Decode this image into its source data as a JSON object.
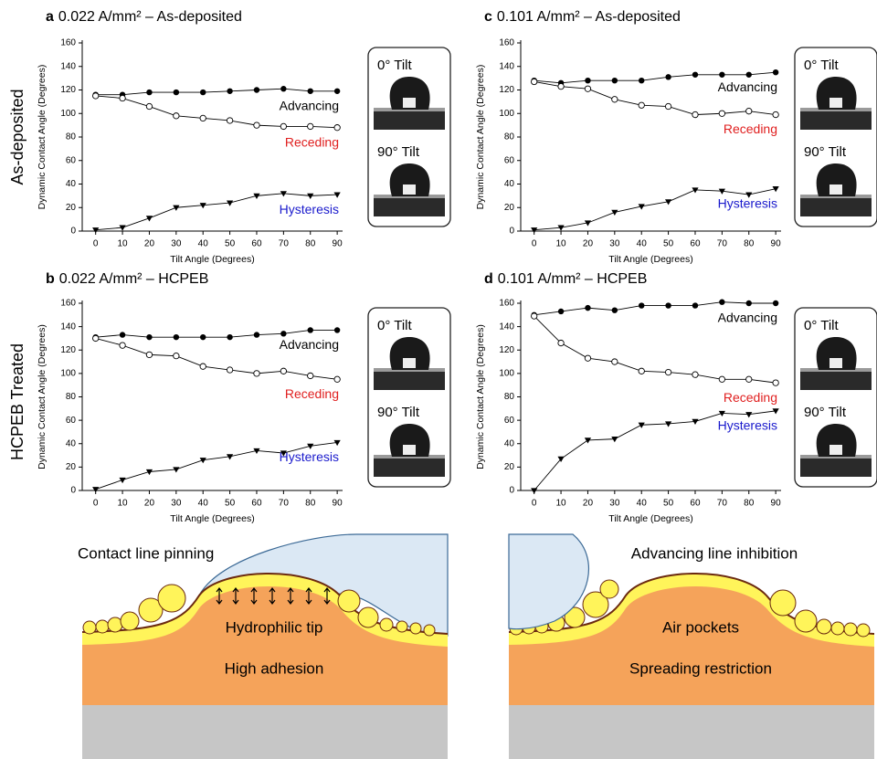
{
  "row_labels": [
    "As-deposited",
    "HCPEB Treated"
  ],
  "chart_data": [
    {
      "type": "line",
      "panel_label": "a",
      "title": "0.022 A/mm² – As-deposited",
      "xlabel": "Tilt Angle (Degrees)",
      "ylabel": "Dynamic Contact Angle (Degrees)",
      "x": [
        0,
        10,
        20,
        30,
        40,
        50,
        60,
        70,
        80,
        90
      ],
      "xlim": [
        -5,
        92
      ],
      "ylim": [
        0,
        160
      ],
      "xticks": [
        0,
        10,
        20,
        30,
        40,
        50,
        60,
        70,
        80,
        90
      ],
      "yticks": [
        0,
        20,
        40,
        60,
        80,
        100,
        120,
        140,
        160
      ],
      "series": [
        {
          "name": "Advancing",
          "color": "#000000",
          "label_color": "#000000",
          "marker": "filled-circle",
          "values": [
            116,
            116,
            118,
            118,
            118,
            119,
            120,
            121,
            119,
            119
          ]
        },
        {
          "name": "Receding",
          "color": "#000000",
          "label_color": "#e02020",
          "marker": "open-circle",
          "values": [
            115,
            113,
            106,
            98,
            96,
            94,
            90,
            89,
            89,
            88
          ]
        },
        {
          "name": "Hysteresis",
          "color": "#000000",
          "label_color": "#1a1acc",
          "marker": "triangle-down",
          "values": [
            1,
            3,
            11,
            20,
            22,
            24,
            30,
            32,
            30,
            31
          ]
        }
      ]
    },
    {
      "type": "line",
      "panel_label": "b",
      "title": "0.022 A/mm² – HCPEB",
      "xlabel": "Tilt Angle (Degrees)",
      "ylabel": "Dynamic Contact Angle (Degrees)",
      "x": [
        0,
        10,
        20,
        30,
        40,
        50,
        60,
        70,
        80,
        90
      ],
      "xlim": [
        -5,
        92
      ],
      "ylim": [
        0,
        160
      ],
      "xticks": [
        0,
        10,
        20,
        30,
        40,
        50,
        60,
        70,
        80,
        90
      ],
      "yticks": [
        0,
        20,
        40,
        60,
        80,
        100,
        120,
        140,
        160
      ],
      "series": [
        {
          "name": "Advancing",
          "color": "#000000",
          "label_color": "#000000",
          "marker": "filled-circle",
          "values": [
            131,
            133,
            131,
            131,
            131,
            131,
            133,
            134,
            137,
            137
          ]
        },
        {
          "name": "Receding",
          "color": "#000000",
          "label_color": "#e02020",
          "marker": "open-circle",
          "values": [
            130,
            124,
            116,
            115,
            106,
            103,
            100,
            102,
            98,
            95
          ]
        },
        {
          "name": "Hysteresis",
          "color": "#000000",
          "label_color": "#1a1acc",
          "marker": "triangle-down",
          "values": [
            1,
            9,
            16,
            18,
            26,
            29,
            34,
            32,
            38,
            41
          ]
        }
      ]
    },
    {
      "type": "line",
      "panel_label": "c",
      "title": "0.101 A/mm² – As-deposited",
      "xlabel": "Tilt Angle (Degrees)",
      "ylabel": "Dynamic Contact Angle (Degrees)",
      "x": [
        0,
        10,
        20,
        30,
        40,
        50,
        60,
        70,
        80,
        90
      ],
      "xlim": [
        -5,
        92
      ],
      "ylim": [
        0,
        160
      ],
      "xticks": [
        0,
        10,
        20,
        30,
        40,
        50,
        60,
        70,
        80,
        90
      ],
      "yticks": [
        0,
        20,
        40,
        60,
        80,
        100,
        120,
        140,
        160
      ],
      "series": [
        {
          "name": "Advancing",
          "color": "#000000",
          "label_color": "#000000",
          "marker": "filled-circle",
          "values": [
            128,
            126,
            128,
            128,
            128,
            131,
            133,
            133,
            133,
            135
          ]
        },
        {
          "name": "Receding",
          "color": "#000000",
          "label_color": "#e02020",
          "marker": "open-circle",
          "values": [
            127,
            123,
            121,
            112,
            107,
            106,
            99,
            100,
            102,
            99
          ]
        },
        {
          "name": "Hysteresis",
          "color": "#000000",
          "label_color": "#1a1acc",
          "marker": "triangle-down",
          "values": [
            1,
            3,
            7,
            16,
            21,
            25,
            35,
            34,
            31,
            36
          ]
        }
      ]
    },
    {
      "type": "line",
      "panel_label": "d",
      "title": "0.101 A/mm² – HCPEB",
      "xlabel": "Tilt Angle (Degrees)",
      "ylabel": "Dynamic Contact Angle (Degrees)",
      "x": [
        0,
        10,
        20,
        30,
        40,
        50,
        60,
        70,
        80,
        90
      ],
      "xlim": [
        -5,
        92
      ],
      "ylim": [
        0,
        160
      ],
      "xticks": [
        0,
        10,
        20,
        30,
        40,
        50,
        60,
        70,
        80,
        90
      ],
      "yticks": [
        0,
        20,
        40,
        60,
        80,
        100,
        120,
        140,
        160
      ],
      "series": [
        {
          "name": "Advancing",
          "color": "#000000",
          "label_color": "#000000",
          "marker": "filled-circle",
          "values": [
            150,
            153,
            156,
            154,
            158,
            158,
            158,
            161,
            160,
            160
          ]
        },
        {
          "name": "Receding",
          "color": "#000000",
          "label_color": "#e02020",
          "marker": "open-circle",
          "values": [
            149,
            126,
            113,
            110,
            102,
            101,
            99,
            95,
            95,
            92
          ]
        },
        {
          "name": "Hysteresis",
          "color": "#000000",
          "label_color": "#1a1acc",
          "marker": "triangle-down",
          "values": [
            0,
            27,
            43,
            44,
            56,
            57,
            59,
            66,
            65,
            68
          ]
        }
      ]
    }
  ],
  "insets": [
    {
      "labels": [
        "0° Tilt",
        "90° Tilt"
      ]
    },
    {
      "labels": [
        "0° Tilt",
        "90° Tilt"
      ]
    },
    {
      "labels": [
        "0° Tilt",
        "90° Tilt"
      ]
    },
    {
      "labels": [
        "0° Tilt",
        "90° Tilt"
      ]
    }
  ],
  "schematics": [
    {
      "title": "Contact line pinning",
      "labels": [
        "Hydrophilic tip",
        "High adhesion"
      ]
    },
    {
      "title": "Advancing line inhibition",
      "labels": [
        "Air pockets",
        "Spreading restriction"
      ]
    }
  ]
}
